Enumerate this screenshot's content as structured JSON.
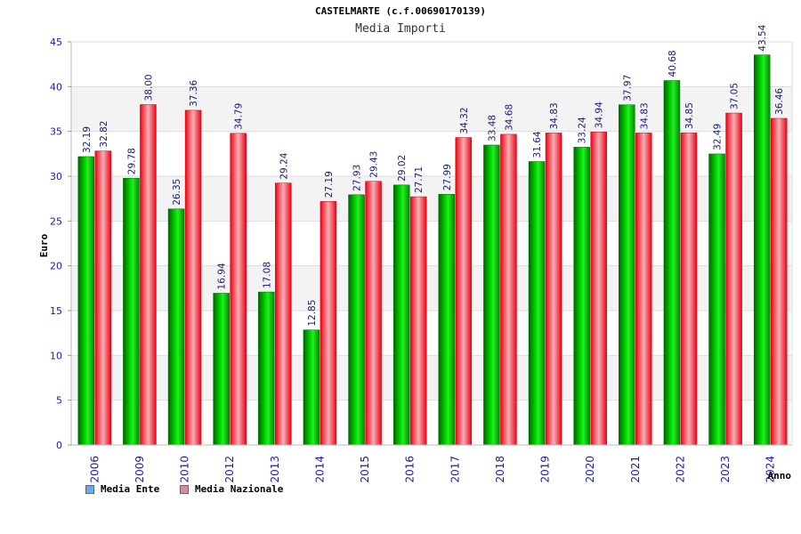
{
  "chart_data": {
    "type": "bar",
    "title": "CASTELMARTE (c.f.00690170139)",
    "subtitle": "Media Importi",
    "ylabel": "Euro",
    "xlabel": "Anno",
    "ylim": [
      0,
      45
    ],
    "yticks": [
      0,
      5,
      10,
      15,
      20,
      25,
      30,
      35,
      40,
      45
    ],
    "grid": true,
    "legend_position": "bottom-left",
    "categories": [
      "2006",
      "2009",
      "2010",
      "2012",
      "2013",
      "2014",
      "2015",
      "2016",
      "2017",
      "2018",
      "2019",
      "2020",
      "2021",
      "2022",
      "2023",
      "2024"
    ],
    "series": [
      {
        "name": "Media Ente",
        "color": "#00bb00",
        "legend_color": "#6aaaee",
        "values": [
          32.19,
          29.78,
          26.35,
          16.94,
          17.08,
          12.85,
          27.93,
          29.02,
          27.99,
          33.48,
          31.64,
          33.24,
          37.97,
          40.68,
          32.49,
          43.54
        ],
        "labels": [
          "32.19",
          "29.78",
          "26.35",
          "16.94",
          "17.08",
          "12.85",
          "27.93",
          "29.02",
          "27.99",
          "33.48",
          "31.64",
          "33.24",
          "37.97",
          "40.68",
          "32.49",
          "43.54"
        ]
      },
      {
        "name": "Media Nazionale",
        "color": "#ee1122",
        "legend_color": "#dd88aa",
        "values": [
          32.82,
          38.0,
          37.36,
          34.79,
          29.24,
          27.19,
          29.43,
          27.71,
          34.32,
          34.68,
          34.83,
          34.94,
          34.83,
          34.85,
          37.05,
          36.46
        ],
        "labels": [
          "32.82",
          "38.00",
          "37.36",
          "34.79",
          "29.24",
          "27.19",
          "29.43",
          "27.71",
          "34.32",
          "34.68",
          "34.83",
          "34.94",
          "34.83",
          "34.85",
          "37.05",
          "36.46"
        ]
      }
    ]
  }
}
